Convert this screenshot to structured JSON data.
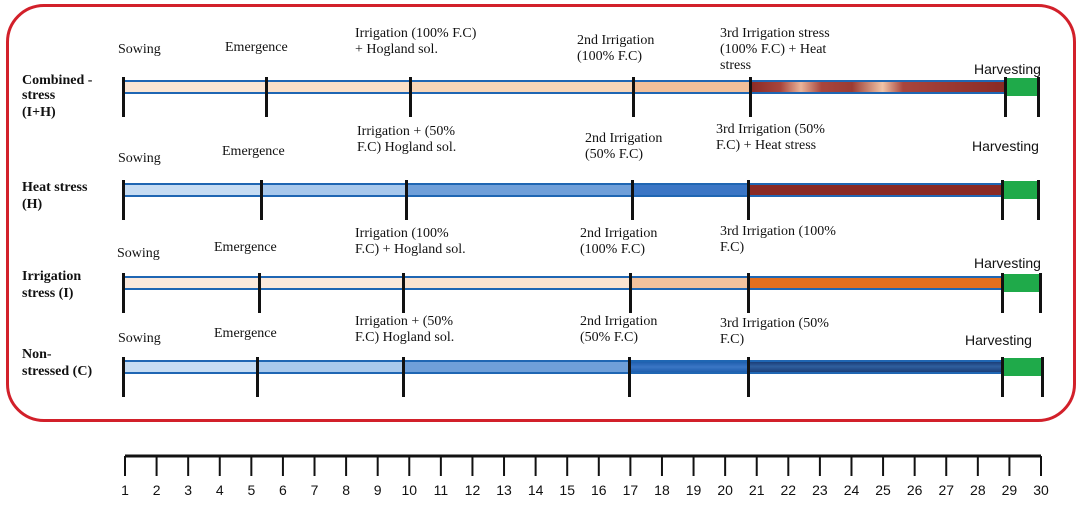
{
  "rows": [
    {
      "label": [
        "Combined -",
        "stress",
        "(I+H)"
      ],
      "stages": [
        {
          "text": [
            "Sowing"
          ]
        },
        {
          "text": [
            "Emergence"
          ]
        },
        {
          "text": [
            "Irrigation (100% F.C)",
            "+ Hogland sol."
          ]
        },
        {
          "text": [
            "2nd Irrigation",
            "(100% F.C)"
          ],
          "sup": "nd"
        },
        {
          "text": [
            "3rd Irrigation stress",
            "(100% F.C) + Heat",
            "stress"
          ],
          "sup": "rd"
        }
      ],
      "harvest": "Harvesting"
    },
    {
      "label": [
        "Heat stress",
        "(H)"
      ],
      "stages": [
        {
          "text": [
            "Sowing"
          ]
        },
        {
          "text": [
            "Emergence"
          ]
        },
        {
          "text": [
            "Irrigation + (50%",
            "F.C) Hogland sol."
          ]
        },
        {
          "text": [
            "2nd Irrigation",
            "(50% F.C)"
          ],
          "sup": "nd"
        },
        {
          "text": [
            "3rd Irrigation (50%",
            "F.C) + Heat stress"
          ],
          "sup": "rd"
        }
      ],
      "harvest": "Harvesting"
    },
    {
      "label": [
        "Irrigation",
        "stress (I)"
      ],
      "stages": [
        {
          "text": [
            "Sowing"
          ]
        },
        {
          "text": [
            "Emergence"
          ]
        },
        {
          "text": [
            "Irrigation (100%",
            "F.C) + Hogland sol."
          ]
        },
        {
          "text": [
            "2nd Irrigation",
            "(100% F.C)"
          ],
          "sup": "nd"
        },
        {
          "text": [
            "3rd Irrigation (100%",
            "F.C)"
          ],
          "sup": "rd"
        }
      ],
      "harvest": "Harvesting"
    },
    {
      "label": [
        "Non-",
        "stressed (C)"
      ],
      "stages": [
        {
          "text": [
            "Sowing"
          ]
        },
        {
          "text": [
            "Emergence"
          ]
        },
        {
          "text": [
            "Irrigation + (50%",
            "F.C) Hogland sol."
          ]
        },
        {
          "text": [
            "2nd Irrigation",
            "(50% F.C)"
          ],
          "sup": "nd"
        },
        {
          "text": [
            "3rd Irrigation (50%",
            "F.C)"
          ],
          "sup": "rd"
        }
      ],
      "harvest": "Harvesting"
    }
  ],
  "scale": {
    "ticks": [
      "1",
      "2",
      "3",
      "4",
      "5",
      "6",
      "7",
      "8",
      "9",
      "10",
      "11",
      "12",
      "13",
      "14",
      "15",
      "16",
      "17",
      "18",
      "19",
      "20",
      "21",
      "22",
      "23",
      "24",
      "25",
      "26",
      "27",
      "28",
      "29",
      "30"
    ]
  },
  "colors": {
    "frame": "#d2202a",
    "harvest": "#1faa4a",
    "row1": [
      "#fbe6d4",
      "#fbe0c8",
      "#f4c196",
      "combined-gradient"
    ],
    "row2": [
      "#c6dcf3",
      "#a8c8ec",
      "#6f9fd9",
      "#3b76c5",
      "#8a2a25"
    ],
    "row3": [
      "#fbe9dc",
      "#fbe9dc",
      "#fbe3d0",
      "#f3c29d",
      "#e26f1f"
    ],
    "row4": [
      "#c6dcf3",
      "#a9c9ec",
      "#6f9fd9",
      "#1f5fae",
      "navy-gradient"
    ]
  }
}
